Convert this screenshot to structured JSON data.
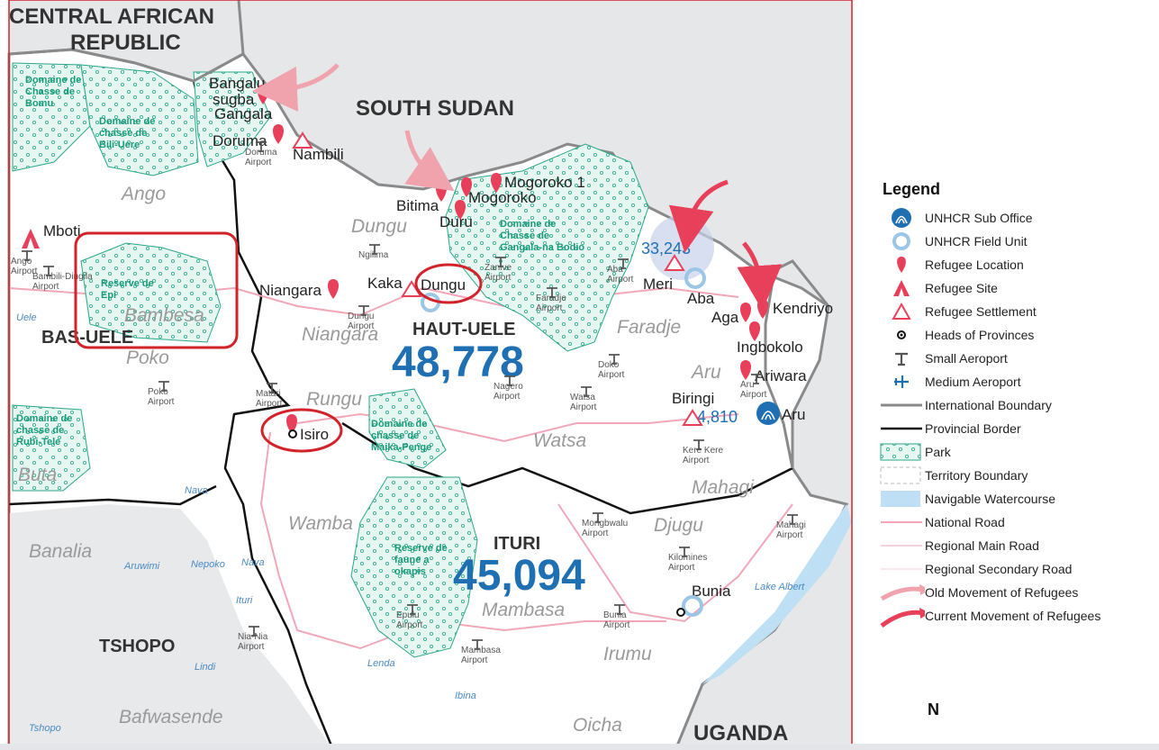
{
  "countries": [
    "CENTRAL AFRICAN",
    "REPUBLIC",
    "SOUTH SUDAN",
    "UGANDA"
  ],
  "provinces": [
    "HAUT-UELE",
    "ITURI",
    "BAS-UELE",
    "TSHOPO"
  ],
  "refugee_totals": {
    "haut_uele": "48,778",
    "ituri": "45,094",
    "meri_site": "33,243",
    "biringi_site": "4,810"
  },
  "territories": [
    "Ango",
    "Dungu",
    "Niangara",
    "Rungu",
    "Faradje",
    "Aru",
    "Watsa",
    "Mahagi",
    "Djugu",
    "Wamba",
    "Mambasa",
    "Irumu",
    "Banalia",
    "Bafwasende",
    "Poko",
    "Buta",
    "Bambesa",
    "Oicha"
  ],
  "places": [
    "Bangalu",
    "sugba",
    "Gangala",
    "Doruma",
    "Nambili",
    "Mboti",
    "Niangara",
    "Kaka",
    "Dungu",
    "Bitima",
    "Duru",
    "Mogoroko",
    "Mogoroko 1",
    "Meri",
    "Aba",
    "Aga",
    "Kendriyo",
    "Ingbokolo",
    "Ariwara",
    "Aru",
    "Biringi",
    "Isiro",
    "Bunia"
  ],
  "airports": [
    "Doruma Airport",
    "Ango Airport",
    "Bambili-Dingila Airport",
    "Ngilima",
    "Dungu Airport",
    "Poko Airport",
    "Matari Airport",
    "Nagero Airport",
    "Doko Airport",
    "Watsa Airport",
    "Aba Airport",
    "Faradje Airport",
    "Zanive Airport",
    "Kere Kere Airport",
    "Aru Airport",
    "Mahagi Airport",
    "Mongbwalu Airport",
    "Kilomines Airport",
    "Bunia Airport",
    "Epulu Airport",
    "Nia-Nia Airport",
    "Mambasa Airport"
  ],
  "parks": [
    "Domaine de Chasse de Bomu",
    "Domaine de chasse de Bili-Uere",
    "Domaine de Chasse de Gangala-na Bodio",
    "Reserve de Epi",
    "Domaine de chasse de Maika-Penge",
    "Domaine de chasse de Rubi-Tele",
    "Reserve de faune a okapis"
  ],
  "rivers": [
    "Uele",
    "Aruwimi",
    "Nepoko",
    "Nava",
    "Ituri",
    "Lindi",
    "Lenda",
    "Ibina",
    "Tshopo",
    "Nava",
    "Lake Albert"
  ],
  "legend": {
    "title": "Legend",
    "items": [
      {
        "label": "UNHCR Sub Office",
        "icon": "unhcr-sub-office-icon"
      },
      {
        "label": "UNHCR Field Unit",
        "icon": "field-unit-ring-icon"
      },
      {
        "label": "Refugee Location",
        "icon": "map-pin-icon"
      },
      {
        "label": "Refugee Site",
        "icon": "tent-icon"
      },
      {
        "label": "Refugee Settlement",
        "icon": "triangle-icon"
      },
      {
        "label": "Heads of Provinces",
        "icon": "dot-icon"
      },
      {
        "label": "Small Aeroport",
        "icon": "small-plane-icon"
      },
      {
        "label": "Medium Aeroport",
        "icon": "medium-plane-icon"
      },
      {
        "label": "International Boundary",
        "icon": "gray-line-icon"
      },
      {
        "label": "Provincial Border",
        "icon": "black-line-icon"
      },
      {
        "label": "Park",
        "icon": "park-pattern-icon"
      },
      {
        "label": "Territory Boundary",
        "icon": "territory-dash-icon"
      },
      {
        "label": "Navigable Watercourse",
        "icon": "water-icon"
      },
      {
        "label": "National Road",
        "icon": "pink-line-icon"
      },
      {
        "label": "Regional Main Road",
        "icon": "light-pink-line-icon"
      },
      {
        "label": "Regional Secondary Road",
        "icon": "faint-pink-line-icon"
      },
      {
        "label": "Old Movement of Refugees",
        "icon": "light-arrow-icon"
      },
      {
        "label": "Current Movement of Refugees",
        "icon": "red-arrow-icon"
      }
    ]
  },
  "north_label": "N",
  "colors": {
    "neighbor": "#e6e7e9",
    "drc": "#ffffff",
    "park_fill": "#e4f5ef",
    "park_line": "#2aa68a",
    "refugee_red": "#e8405a",
    "unhcr_blue": "#1f6fb3",
    "annotation_red": "#d2232a"
  }
}
